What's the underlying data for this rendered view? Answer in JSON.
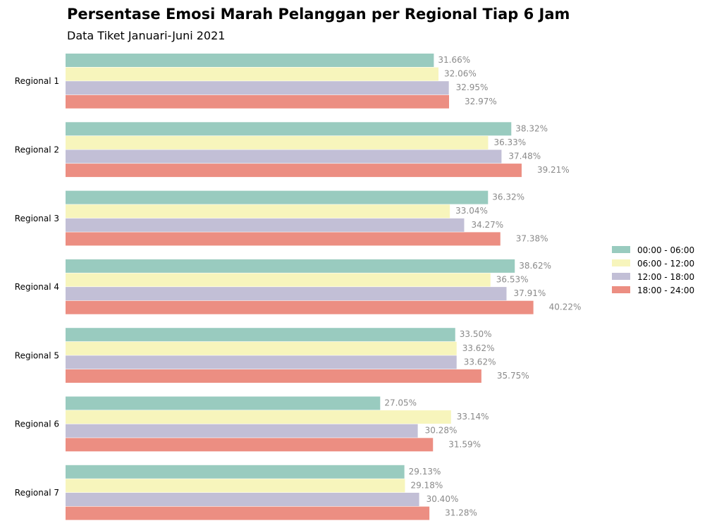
{
  "chart_data": {
    "type": "bar",
    "orientation": "horizontal",
    "title": "Persentase Emosi Marah Pelanggan per Regional Tiap 6 Jam",
    "subtitle": "Data Tiket Januari-Juni 2021",
    "xlabel": "",
    "ylabel": "",
    "xlim": [
      0,
      45
    ],
    "grid": false,
    "legend_position": "right",
    "value_suffix": "%",
    "categories": [
      "Regional 1",
      "Regional 2",
      "Regional 3",
      "Regional 4",
      "Regional 5",
      "Regional 6",
      "Regional 7"
    ],
    "series": [
      {
        "name": "00:00 - 06:00",
        "color": "#99cbbf",
        "values": [
          31.66,
          38.32,
          36.32,
          38.62,
          33.5,
          27.05,
          29.13
        ]
      },
      {
        "name": "06:00 - 12:00",
        "color": "#f7f5bc",
        "values": [
          32.06,
          36.33,
          33.04,
          36.53,
          33.62,
          33.14,
          29.18
        ]
      },
      {
        "name": "12:00 - 18:00",
        "color": "#c2bfd6",
        "values": [
          32.95,
          37.48,
          34.27,
          37.91,
          33.62,
          30.28,
          30.4
        ]
      },
      {
        "name": "18:00 - 24:00",
        "color": "#ec8e82",
        "values": [
          32.97,
          39.21,
          37.38,
          40.22,
          35.75,
          31.59,
          31.28
        ]
      }
    ]
  }
}
